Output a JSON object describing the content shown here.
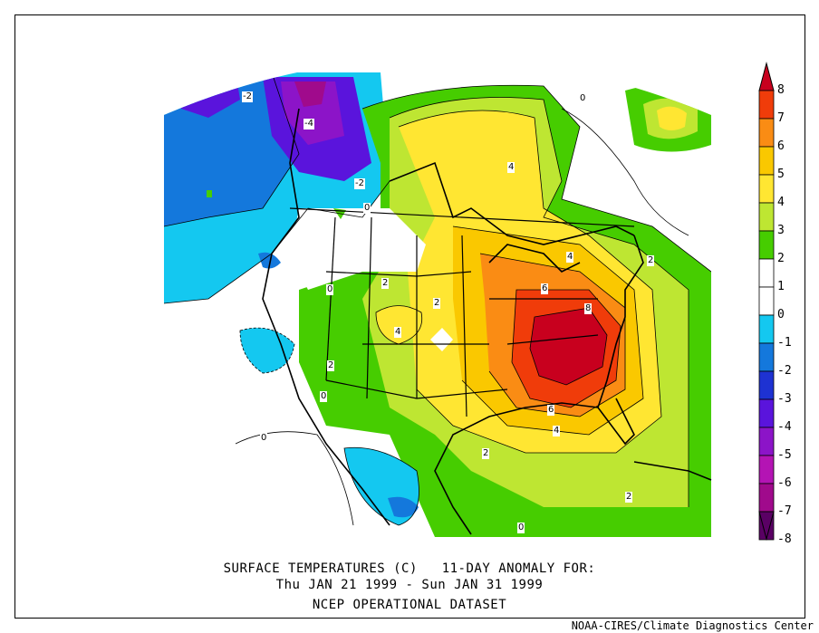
{
  "title": {
    "line1": "SURFACE TEMPERATURES (C)   11-DAY ANOMALY FOR:",
    "line2": "Thu JAN 21 1999 - Sun JAN 31 1999",
    "line3": "NCEP OPERATIONAL DATASET"
  },
  "credit": "NOAA-CIRES/Climate Diagnostics Center",
  "colorbar": {
    "levels": [
      {
        "label": "8",
        "color": "#c8001e"
      },
      {
        "label": "7",
        "color": "#f03c0a"
      },
      {
        "label": "6",
        "color": "#fa8c14"
      },
      {
        "label": "5",
        "color": "#fac800"
      },
      {
        "label": "4",
        "color": "#ffe632"
      },
      {
        "label": "3",
        "color": "#bee632"
      },
      {
        "label": "2",
        "color": "#46cd00"
      },
      {
        "label": "1",
        "color": "#ffffff"
      },
      {
        "label": "0",
        "color": "#ffffff"
      },
      {
        "label": "-1",
        "color": "#14c8f0"
      },
      {
        "label": "-2",
        "color": "#1478dc"
      },
      {
        "label": "-3",
        "color": "#1e32d2"
      },
      {
        "label": "-4",
        "color": "#5a14dc"
      },
      {
        "label": "-5",
        "color": "#8c14c8"
      },
      {
        "label": "-6",
        "color": "#b414b4"
      },
      {
        "label": "-7",
        "color": "#a00a8c"
      },
      {
        "label": "-8",
        "color": "#5a0064"
      }
    ]
  },
  "map": {
    "contour_labels": [
      {
        "text": "-2",
        "lon_area": "north-pacific"
      },
      {
        "text": "-4",
        "lon_area": "alaska"
      },
      {
        "text": "-2",
        "lon_area": "yukon"
      },
      {
        "text": "0",
        "lon_area": "british-columbia"
      },
      {
        "text": "0",
        "lon_area": "baffin"
      },
      {
        "text": "4",
        "lon_area": "hudson-bay"
      },
      {
        "text": "4",
        "lon_area": "great-lakes"
      },
      {
        "text": "2",
        "lon_area": "new-england"
      },
      {
        "text": "6",
        "lon_area": "ohio-valley"
      },
      {
        "text": "8",
        "lon_area": "appalachians"
      },
      {
        "text": "2",
        "lon_area": "montana"
      },
      {
        "text": "0",
        "lon_area": "idaho"
      },
      {
        "text": "2",
        "lon_area": "dakotas"
      },
      {
        "text": "4",
        "lon_area": "nebraska"
      },
      {
        "text": "2",
        "lon_area": "nevada"
      },
      {
        "text": "0",
        "lon_area": "california"
      },
      {
        "text": "6",
        "lon_area": "gulf-coast"
      },
      {
        "text": "4",
        "lon_area": "louisiana"
      },
      {
        "text": "2",
        "lon_area": "texas-coast"
      },
      {
        "text": "2",
        "lon_area": "caribbean"
      },
      {
        "text": "0",
        "lon_area": "eastern-pacific"
      },
      {
        "text": "0",
        "lon_area": "mexico"
      }
    ]
  }
}
